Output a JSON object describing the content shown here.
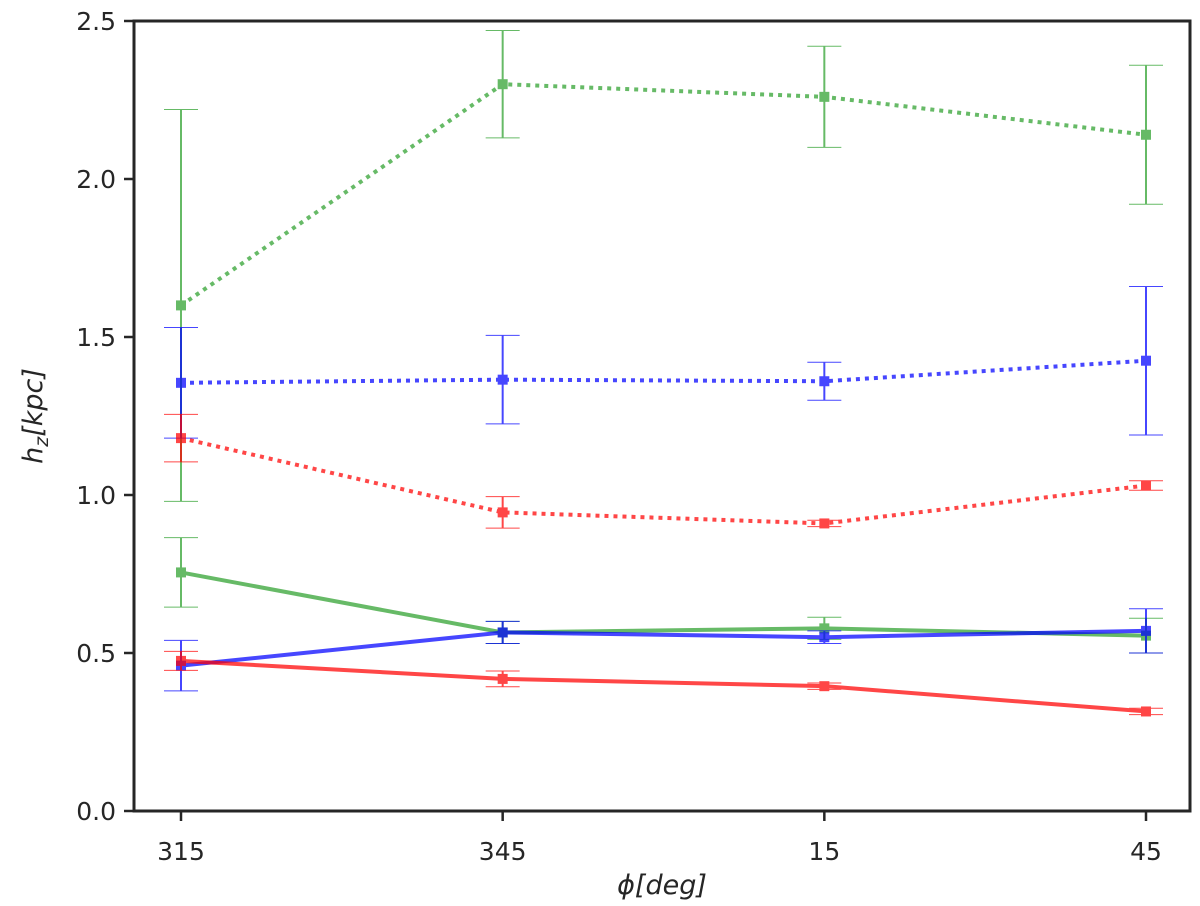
{
  "chart_data": {
    "type": "line",
    "title": "",
    "x": [
      "315",
      "345",
      "15",
      "45"
    ],
    "ylim": [
      0,
      2.5
    ],
    "yticks": [
      "0.0",
      "0.5",
      "1.0",
      "1.5",
      "2.0",
      "2.5"
    ],
    "ytick_values": [
      0,
      0.5,
      1.0,
      1.5,
      2.0,
      2.5
    ],
    "xlabel": {
      "main": "ϕ",
      "unit": "[deg]"
    },
    "ylabel": {
      "main": "h",
      "sub": "z",
      "unit": "[kpc]"
    },
    "grid": false,
    "legend": "none",
    "series": [
      {
        "color": "#2ca02c",
        "style": "dotted",
        "values": [
          1.6,
          2.3,
          2.26,
          2.14
        ],
        "err_low": [
          0.62,
          0.17,
          0.16,
          0.22
        ],
        "err_high": [
          0.62,
          0.17,
          0.16,
          0.22
        ]
      },
      {
        "color": "#0000ff",
        "style": "dotted",
        "values": [
          1.355,
          1.365,
          1.36,
          1.425
        ],
        "err_low": [
          0.175,
          0.14,
          0.06,
          0.235
        ],
        "err_high": [
          0.175,
          0.14,
          0.06,
          0.235
        ]
      },
      {
        "color": "#ff0000",
        "style": "dotted",
        "values": [
          1.18,
          0.945,
          0.91,
          1.03
        ],
        "err_low": [
          0.075,
          0.05,
          0.01,
          0.015
        ],
        "err_high": [
          0.075,
          0.05,
          0.01,
          0.015
        ]
      },
      {
        "color": "#2ca02c",
        "style": "solid",
        "values": [
          0.755,
          0.565,
          0.578,
          0.555
        ],
        "err_low": [
          0.11,
          0.035,
          0.035,
          0.055
        ],
        "err_high": [
          0.11,
          0.035,
          0.035,
          0.055
        ]
      },
      {
        "color": "#0000ff",
        "style": "solid",
        "values": [
          0.46,
          0.565,
          0.55,
          0.57
        ],
        "err_low": [
          0.08,
          0.035,
          0.02,
          0.07
        ],
        "err_high": [
          0.08,
          0.035,
          0.02,
          0.07
        ]
      },
      {
        "color": "#ff0000",
        "style": "solid",
        "values": [
          0.475,
          0.418,
          0.395,
          0.315
        ],
        "err_low": [
          0.03,
          0.025,
          0.01,
          0.01
        ],
        "err_high": [
          0.03,
          0.025,
          0.01,
          0.01
        ]
      }
    ]
  }
}
